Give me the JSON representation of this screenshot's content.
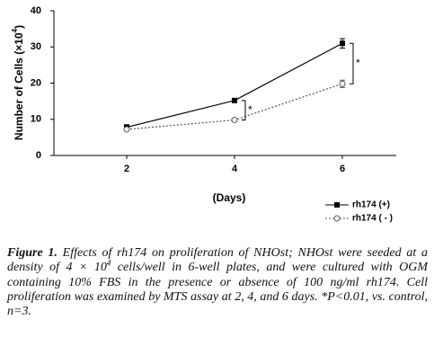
{
  "chart_data": {
    "type": "line",
    "y_label": {
      "text": "Number of Cells (×10",
      "sup": "4",
      "end": ")"
    },
    "x_label": "(Days)",
    "x": [
      2,
      4,
      6
    ],
    "xlim": [
      0.65,
      7
    ],
    "xticks": [
      2,
      4,
      6
    ],
    "ylim": [
      0,
      40
    ],
    "yticks": [
      0,
      10,
      20,
      30,
      40
    ],
    "grid": false,
    "legend": "lower right",
    "series": [
      {
        "name": "rh174 (+)",
        "color": "#000000",
        "dash": "solid",
        "marker": "square",
        "values": [
          7.8,
          15.2,
          31.0
        ],
        "errors": [
          0.7,
          0.4,
          1.3
        ]
      },
      {
        "name": "rh174 ( - )",
        "color": "#555555",
        "dash": "dotted",
        "marker": "circle",
        "values": [
          7.2,
          9.8,
          19.8
        ],
        "errors": [
          0.4,
          0.4,
          1.0
        ]
      }
    ],
    "annotations": [
      {
        "text": "*",
        "x": 4
      },
      {
        "text": "*",
        "x": 6
      }
    ]
  },
  "caption": {
    "label": "Figure 1.",
    "text1": " Effects of rh174 on proliferation of NHOst; NHOst were seeded at a density of 4 × 10",
    "sup": "4",
    "text2": " cells/well in 6-well plates, and were cultured with OGM containing 10% FBS in the presence or absence of 100 ng/ml rh174. Cell proliferation was examined by MTS assay at 2, 4, and 6 days. *P<0.01, vs. control, n=3."
  }
}
